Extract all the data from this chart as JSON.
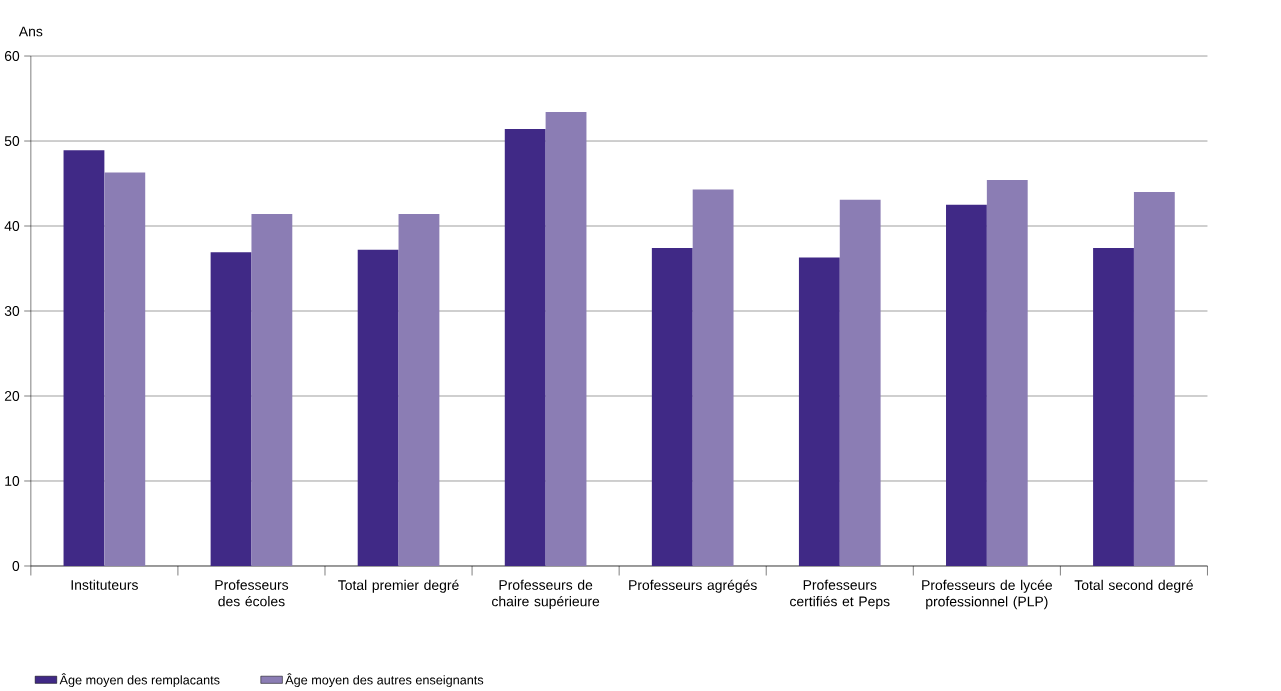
{
  "chart_data": {
    "type": "bar",
    "ylabel": "Ans",
    "categories": [
      "Instituteurs",
      "Professeurs des écoles",
      "Total premier degré",
      "Professeurs de chaire supérieure",
      "Professeurs agrégés",
      "Professeurs certifiés et Peps",
      "Professeurs de lycée professionnel (PLP)",
      "Total second degré"
    ],
    "series": [
      {
        "name": "Âge moyen des remplacants",
        "color": "#402986",
        "values": [
          48.9,
          36.9,
          37.2,
          51.4,
          37.4,
          36.3,
          42.5,
          37.4
        ]
      },
      {
        "name": "Âge moyen des autres enseignants",
        "color": "#8b7db4",
        "values": [
          46.3,
          41.4,
          41.4,
          53.4,
          44.3,
          43.1,
          45.4,
          44.0
        ]
      }
    ],
    "ylim": [
      0,
      60
    ],
    "yticks": [
      0,
      10,
      20,
      30,
      40,
      50,
      60
    ],
    "grid": "y",
    "legend": "bottom left"
  }
}
